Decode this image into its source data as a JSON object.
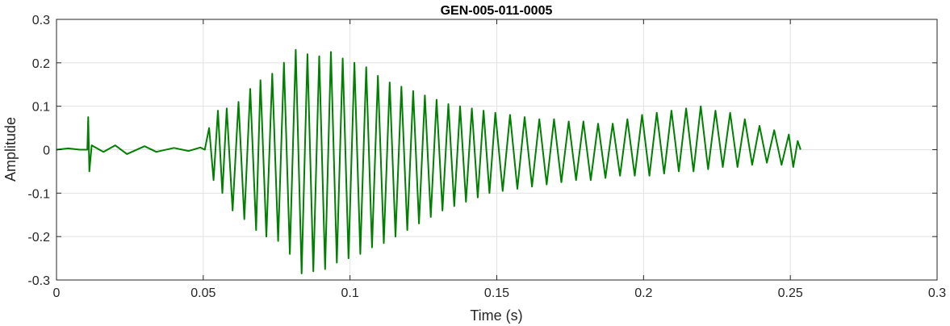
{
  "chart_data": {
    "type": "line",
    "title": "GEN-005-011-0005",
    "xlabel": "Time (s)",
    "ylabel": "Amplitude",
    "xlim": [
      0,
      0.3
    ],
    "ylim": [
      -0.3,
      0.3
    ],
    "x_ticks": [
      0,
      0.05,
      0.1,
      0.15,
      0.2,
      0.25,
      0.3
    ],
    "x_tick_labels": [
      "0",
      "0.05",
      "0.1",
      "0.15",
      "0.2",
      "0.25",
      "0.3"
    ],
    "y_ticks": [
      -0.3,
      -0.2,
      -0.1,
      0,
      0.1,
      0.2,
      0.3
    ],
    "y_tick_labels": [
      "-0.3",
      "-0.2",
      "-0.1",
      "0",
      "0.1",
      "0.2",
      "0.3"
    ],
    "grid": true,
    "series": [
      {
        "color": "#008000",
        "x": [
          0,
          0.004,
          0.008,
          0.0105,
          0.0108,
          0.0112,
          0.012,
          0.016,
          0.02,
          0.024,
          0.03,
          0.034,
          0.04,
          0.045,
          0.049,
          0.0505,
          0.052,
          0.0535,
          0.055,
          0.0565,
          0.058,
          0.06,
          0.062,
          0.064,
          0.066,
          0.068,
          0.0695,
          0.0715,
          0.0735,
          0.0755,
          0.0775,
          0.0795,
          0.0815,
          0.0835,
          0.0855,
          0.0875,
          0.0895,
          0.0915,
          0.0935,
          0.0955,
          0.0975,
          0.0995,
          0.1015,
          0.1035,
          0.1055,
          0.1075,
          0.1095,
          0.1115,
          0.1135,
          0.1155,
          0.1175,
          0.1195,
          0.1215,
          0.1235,
          0.1255,
          0.1275,
          0.1295,
          0.1315,
          0.1335,
          0.1355,
          0.1375,
          0.1395,
          0.1415,
          0.1435,
          0.1455,
          0.1475,
          0.1495,
          0.152,
          0.1545,
          0.157,
          0.1595,
          0.162,
          0.1645,
          0.167,
          0.1695,
          0.172,
          0.1745,
          0.177,
          0.1795,
          0.182,
          0.1845,
          0.187,
          0.1895,
          0.192,
          0.1945,
          0.197,
          0.1995,
          0.202,
          0.2045,
          0.207,
          0.2095,
          0.212,
          0.2145,
          0.217,
          0.2195,
          0.222,
          0.2245,
          0.227,
          0.2295,
          0.232,
          0.2345,
          0.237,
          0.2395,
          0.242,
          0.2445,
          0.247,
          0.2495,
          0.251,
          0.2525,
          0.2535
        ],
        "y": [
          0.0,
          0.003,
          0.0,
          0.0,
          0.075,
          -0.05,
          0.01,
          -0.005,
          0.01,
          -0.01,
          0.008,
          -0.005,
          0.004,
          -0.003,
          0.005,
          0.0,
          0.05,
          -0.07,
          0.09,
          -0.1,
          0.095,
          -0.14,
          0.11,
          -0.16,
          0.14,
          -0.185,
          0.16,
          -0.2,
          0.175,
          -0.21,
          0.2,
          -0.24,
          0.23,
          -0.285,
          0.22,
          -0.28,
          0.215,
          -0.275,
          0.225,
          -0.26,
          0.21,
          -0.25,
          0.2,
          -0.24,
          0.19,
          -0.225,
          0.17,
          -0.215,
          0.155,
          -0.2,
          0.145,
          -0.185,
          0.135,
          -0.17,
          0.125,
          -0.155,
          0.115,
          -0.14,
          0.105,
          -0.13,
          0.1,
          -0.12,
          0.095,
          -0.11,
          0.09,
          -0.1,
          0.085,
          -0.095,
          0.08,
          -0.09,
          0.075,
          -0.085,
          0.07,
          -0.08,
          0.07,
          -0.075,
          0.065,
          -0.07,
          0.065,
          -0.07,
          0.06,
          -0.065,
          0.06,
          -0.06,
          0.07,
          -0.06,
          0.08,
          -0.06,
          0.085,
          -0.055,
          0.09,
          -0.05,
          0.095,
          -0.05,
          0.1,
          -0.045,
          0.09,
          -0.04,
          0.085,
          -0.04,
          0.07,
          -0.035,
          0.055,
          -0.03,
          0.045,
          -0.035,
          0.035,
          -0.04,
          0.02,
          0.0
        ]
      }
    ]
  }
}
